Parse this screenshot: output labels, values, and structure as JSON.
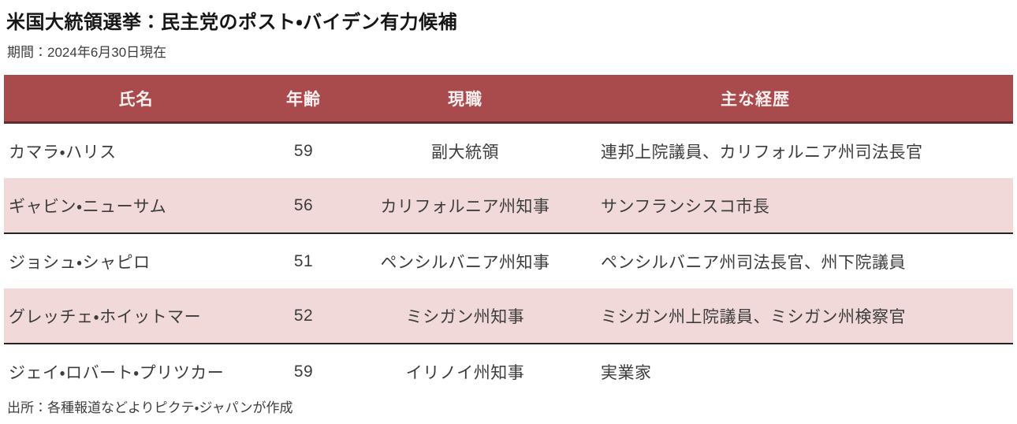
{
  "title": "米国大統領選挙：民主党のポスト・バイデン有力候補",
  "subtitle": "期間：2024年6月30日現在",
  "source": "出所：各種報道などよりピクテ・ジャパンが作成",
  "colors": {
    "header_bg": "#a94b4d",
    "header_text": "#faf0f0",
    "header_border": "#5f2b2d",
    "row_alt_bg": "#f2d9d9",
    "row_border": "#242424",
    "body_text": "#3c3c3c"
  },
  "chart_data": {
    "type": "table",
    "title": "米国大統領選挙：民主党のポスト・バイデン有力候補",
    "subtitle": "期間：2024年6月30日現在",
    "source": "出所：各種報道などよりピクテ・ジャパンが作成",
    "columns": {
      "name": "氏名",
      "age": "年齢",
      "position": "現職",
      "career": "主な経歴"
    },
    "rows": [
      {
        "name": "カマラ・ハリス",
        "age": "59",
        "position": "副大統領",
        "career": "連邦上院議員、カリフォルニア州司法長官"
      },
      {
        "name": "ギャビン・ニューサム",
        "age": "56",
        "position": "カリフォルニア州知事",
        "career": "サンフランシスコ市長"
      },
      {
        "name": "ジョシュ・シャピロ",
        "age": "51",
        "position": "ペンシルバニア州知事",
        "career": "ペンシルバニア州司法長官、州下院議員"
      },
      {
        "name": "グレッチェ・ホイットマー",
        "age": "52",
        "position": "ミシガン州知事",
        "career": "ミシガン州上院議員、ミシガン州検察官"
      },
      {
        "name": "ジェイ・ロバート・プリツカー",
        "age": "59",
        "position": "イリノイ州知事",
        "career": "実業家"
      }
    ]
  }
}
